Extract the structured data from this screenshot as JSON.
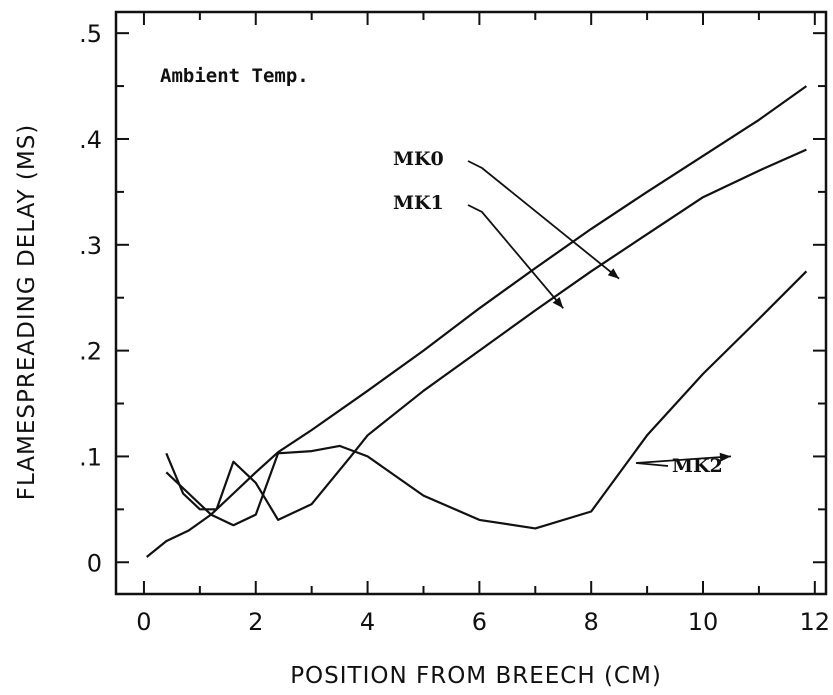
{
  "chart_data": {
    "type": "line",
    "xlabel": "POSITION FROM BREECH (CM)",
    "ylabel": "FLAMESPREADING DELAY (MS)",
    "annotation": "Ambient Temp.",
    "xlim": [
      -0.5,
      12.2
    ],
    "ylim": [
      -0.03,
      0.52
    ],
    "x_ticks": [
      0,
      2,
      4,
      6,
      8,
      10,
      12
    ],
    "x_tick_labels": [
      "0",
      "2",
      "4",
      "6",
      "8",
      "10",
      "12"
    ],
    "y_ticks": [
      0,
      0.1,
      0.2,
      0.3,
      0.4,
      0.5
    ],
    "y_tick_labels": [
      "0",
      ".1",
      ".2",
      ".3",
      ".4",
      ".5"
    ],
    "grid": false,
    "series": [
      {
        "name": "MK0",
        "x": [
          0.05,
          0.4,
          0.8,
          1.2,
          1.6,
          2.0,
          2.4,
          3.0,
          4.0,
          5.0,
          6.0,
          7.0,
          8.0,
          9.0,
          10.0,
          11.0,
          11.85
        ],
        "y": [
          0.005,
          0.02,
          0.03,
          0.045,
          0.065,
          0.085,
          0.104,
          0.125,
          0.162,
          0.2,
          0.24,
          0.278,
          0.315,
          0.35,
          0.384,
          0.418,
          0.45
        ],
        "label_at": [
          8.5,
          0.268
        ]
      },
      {
        "name": "MK1",
        "x": [
          0.4,
          0.8,
          1.2,
          1.6,
          2.0,
          2.4,
          3.0,
          3.5,
          4.0,
          5.0,
          6.0,
          7.0,
          8.0,
          9.0,
          10.0,
          11.0,
          11.85
        ],
        "y": [
          0.085,
          0.065,
          0.045,
          0.035,
          0.045,
          0.103,
          0.105,
          0.11,
          0.1,
          0.063,
          0.04,
          0.032,
          0.048,
          0.12,
          0.178,
          0.23,
          0.275
        ],
        "label_at": [
          7.5,
          0.24
        ]
      },
      {
        "name": "MK2",
        "x": [
          0.4,
          0.7,
          1.0,
          1.3,
          1.6,
          2.0,
          2.4,
          3.0,
          3.7,
          4.0,
          5.0,
          6.0,
          7.0,
          8.0,
          9.0,
          10.0,
          11.0,
          11.85
        ],
        "y": [
          0.103,
          0.065,
          0.05,
          0.05,
          0.095,
          0.075,
          0.04,
          0.055,
          0.1,
          0.12,
          0.162,
          0.2,
          0.238,
          0.275,
          0.31,
          0.345,
          0.37,
          0.39
        ],
        "label_at": [
          10.5,
          0.1
        ]
      }
    ]
  }
}
